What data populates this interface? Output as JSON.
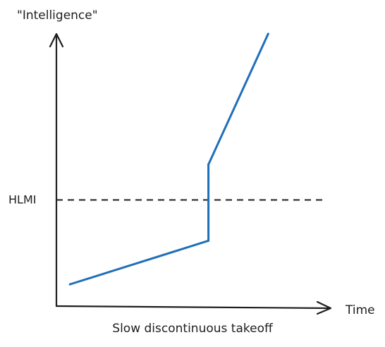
{
  "chart_data": {
    "type": "line",
    "title": "Slow discontinuous takeoff",
    "xlabel": "Time",
    "ylabel": "\"Intelligence\"",
    "xlim": [
      0,
      100
    ],
    "ylim": [
      0,
      100
    ],
    "reference_line": {
      "label": "HLMI",
      "y": 39,
      "style": "dashed"
    },
    "series": [
      {
        "color": "#1f6fb8",
        "points": [
          {
            "x": 5,
            "y": 8
          },
          {
            "x": 56,
            "y": 24
          },
          {
            "x": 56,
            "y": 52
          },
          {
            "x": 78,
            "y": 100
          }
        ]
      }
    ],
    "grid": false,
    "legend": "none"
  },
  "colors": {
    "axis": "#1e1e1e",
    "series": "#1f6fb8"
  }
}
